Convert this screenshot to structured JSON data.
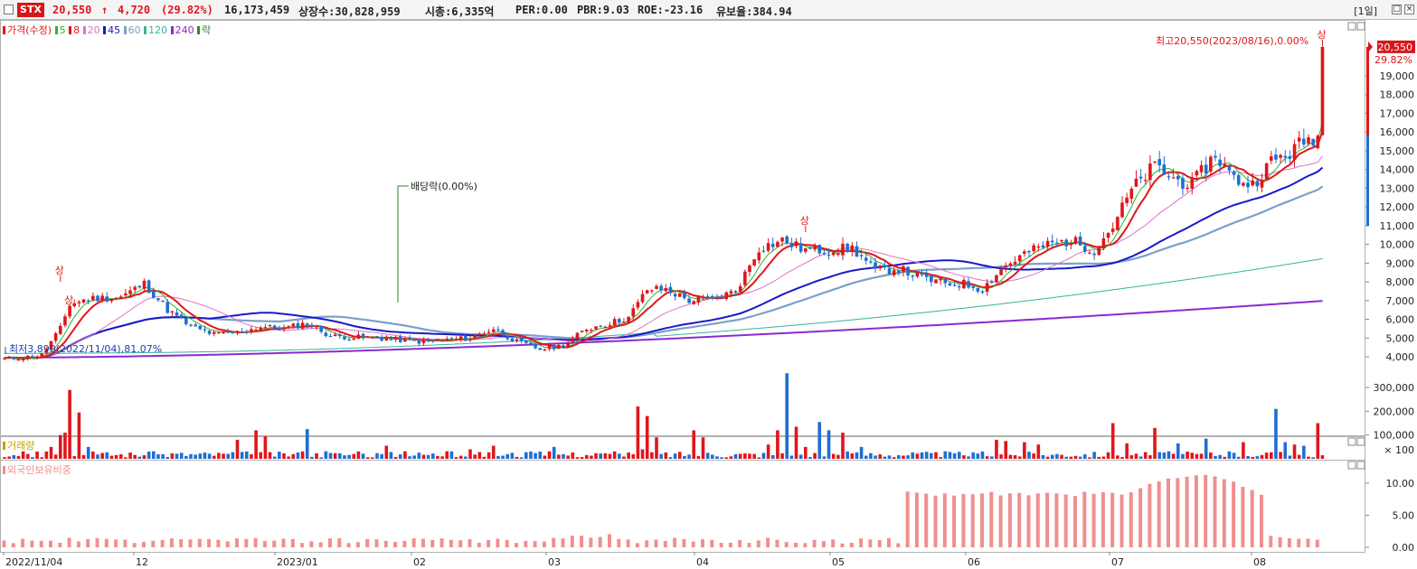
{
  "header": {
    "ticker": "STX",
    "price": "20,550",
    "change_arrow": "↑",
    "change": "4,720",
    "change_pct": "(29.82%)",
    "volume": "16,173,459",
    "listed_shares": "상장수:30,828,959",
    "market_cap": "시총:6,335억",
    "per": "PER:0.00",
    "pbr": "PBR:9.03",
    "roe": "ROE:-23.16",
    "reserve_ratio": "유보율:384.94",
    "period_label": "[1일]"
  },
  "price_panel": {
    "legend": [
      {
        "label": "가격(수정)",
        "color": "#e0161b"
      },
      {
        "label": "5",
        "color": "#2db52d"
      },
      {
        "label": "8",
        "color": "#e0161b"
      },
      {
        "label": "20",
        "color": "#e070c8"
      },
      {
        "label": "45",
        "color": "#1919c8"
      },
      {
        "label": "60",
        "color": "#7aa0c8"
      },
      {
        "label": "120",
        "color": "#39b39a"
      },
      {
        "label": "240",
        "color": "#8a2ad0"
      },
      {
        "label": "락",
        "color": "#2a8a2a"
      }
    ],
    "high_annotation": "최고20,550(2023/08/16),0.00%",
    "low_annotation": "최저3,890(2022/11/04),81.07%",
    "dividend_annotation": "배당락(0.00%)",
    "upper_limit_marker": "상",
    "current_price_tag": "20,550",
    "current_pct_tag": "29.82%",
    "y_ticks": [
      "19,000",
      "18,000",
      "17,000",
      "16,000",
      "15,000",
      "14,000",
      "13,000",
      "12,000",
      "11,000",
      "10,000",
      "9,000",
      "8,000",
      "7,000",
      "6,000",
      "5,000",
      "4,000"
    ]
  },
  "volume_panel": {
    "legend": "거래량",
    "y_ticks": [
      "300,000",
      "200,000",
      "100,000"
    ],
    "unit_label": "× 100"
  },
  "foreign_panel": {
    "legend": "외국인보유비중",
    "y_ticks": [
      "10.00",
      "5.00",
      "0.00"
    ]
  },
  "x_axis": {
    "labels": [
      "2022/11/04",
      "12",
      "2023/01",
      "02",
      "03",
      "04",
      "05",
      "06",
      "07",
      "08"
    ]
  },
  "colors": {
    "up": "#e0161b",
    "down": "#1f6fd1",
    "ma5": "#2db52d",
    "ma8": "#e0161b",
    "ma20": "#e070c8",
    "ma45": "#1919c8",
    "ma60": "#7aa0c8",
    "ma120": "#39b39a",
    "ma240": "#8a2ad0",
    "foreign": "#f08f8f"
  },
  "chart_data": {
    "type": "candlestick",
    "x_start": "2022/11/04",
    "x_end": "2023/08/16",
    "series": [
      {
        "name": "가격(수정)",
        "keypoints": [
          [
            0,
            3890
          ],
          [
            4,
            3950
          ],
          [
            8,
            4100
          ],
          [
            12,
            5500
          ],
          [
            14,
            6800
          ],
          [
            18,
            7100
          ],
          [
            25,
            7200
          ],
          [
            30,
            7900
          ],
          [
            35,
            6500
          ],
          [
            40,
            5600
          ],
          [
            45,
            5200
          ],
          [
            50,
            5300
          ],
          [
            55,
            5600
          ],
          [
            60,
            5500
          ],
          [
            65,
            5800
          ],
          [
            70,
            5100
          ],
          [
            75,
            5050
          ],
          [
            80,
            5000
          ],
          [
            85,
            4900
          ],
          [
            90,
            4800
          ],
          [
            95,
            4900
          ],
          [
            100,
            5000
          ],
          [
            105,
            5500
          ],
          [
            110,
            4800
          ],
          [
            115,
            4400
          ],
          [
            120,
            4600
          ],
          [
            125,
            5500
          ],
          [
            130,
            5800
          ],
          [
            134,
            6100
          ],
          [
            138,
            7600
          ],
          [
            142,
            7600
          ],
          [
            147,
            7000
          ],
          [
            152,
            7100
          ],
          [
            157,
            7500
          ],
          [
            162,
            9800
          ],
          [
            167,
            10200
          ],
          [
            172,
            9700
          ],
          [
            177,
            9700
          ],
          [
            182,
            9800
          ],
          [
            187,
            8600
          ],
          [
            192,
            8700
          ],
          [
            197,
            8200
          ],
          [
            202,
            7900
          ],
          [
            206,
            7900
          ],
          [
            210,
            7600
          ],
          [
            214,
            8700
          ],
          [
            219,
            9500
          ],
          [
            224,
            10000
          ],
          [
            229,
            10200
          ],
          [
            234,
            9700
          ],
          [
            238,
            11000
          ],
          [
            242,
            12900
          ],
          [
            247,
            14200
          ],
          [
            251,
            13500
          ],
          [
            255,
            13200
          ],
          [
            260,
            14800
          ],
          [
            264,
            13500
          ],
          [
            268,
            13200
          ],
          [
            272,
            14400
          ],
          [
            276,
            14900
          ],
          [
            279,
            15500
          ],
          [
            282,
            15830
          ],
          [
            283,
            20550
          ]
        ]
      },
      {
        "name": "거래량",
        "unit": "× 100",
        "peaks": [
          [
            "2022/11 mid",
            280000
          ],
          [
            "2023/04 start",
            220000
          ],
          [
            "2023/04 mid",
            180000
          ],
          [
            "2023/05 start",
            360000
          ],
          [
            "2023/08 start",
            210000
          ],
          [
            "2023/08/16",
            150000
          ]
        ]
      },
      {
        "name": "외국인보유비중",
        "unit": "%",
        "keypoints": [
          [
            "2022/11/04",
            1.0
          ],
          [
            "2023/05 end",
            1.0
          ],
          [
            "2023/05 end",
            8.5
          ],
          [
            "2023/06",
            7.8
          ],
          [
            "2023/07 mid",
            11.0
          ],
          [
            "2023/08 start",
            7.5
          ],
          [
            "2023/08 start",
            1.6
          ],
          [
            "2023/08/16",
            0.8
          ]
        ]
      }
    ],
    "ylim_price": [
      3500,
      21000
    ],
    "ylim_volume": [
      0,
      380000
    ],
    "ylim_foreign": [
      0,
      12.5
    ]
  }
}
